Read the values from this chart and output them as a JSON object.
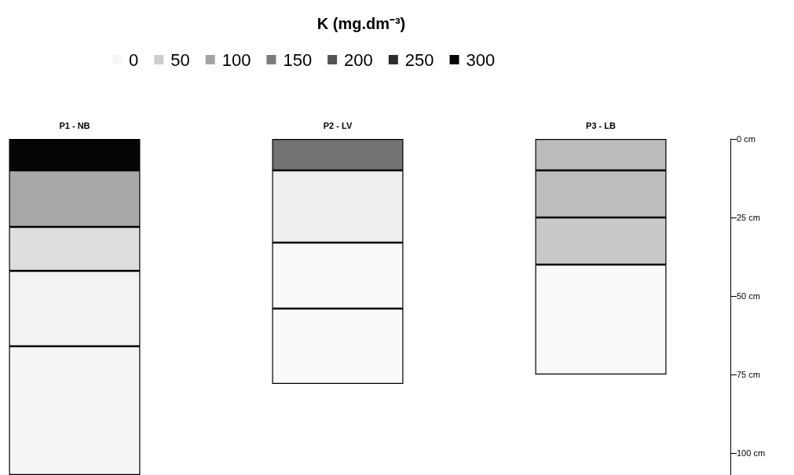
{
  "chart_data": {
    "type": "bar",
    "stacked": true,
    "legend_title": "K (mg.dm⁻³)",
    "legend": "top",
    "categories": [
      "P1 - NB",
      "P2 - LV",
      "P3 - LB"
    ],
    "series": [
      {
        "values": [
          10,
          10,
          10
        ],
        "colors": [
          "#050505",
          "#737373",
          "#bbbbbb"
        ]
      },
      {
        "values": [
          18,
          23,
          15
        ],
        "colors": [
          "#a8a8a8",
          "#efefef",
          "#bdbdbd"
        ]
      },
      {
        "values": [
          14,
          21,
          15
        ],
        "colors": [
          "#dedede",
          "#fafafa",
          "#c9c9c9"
        ]
      },
      {
        "values": [
          24,
          24,
          35
        ],
        "colors": [
          "#f3f3f3",
          "#fafafa",
          "#f9f9f9"
        ]
      },
      {
        "values": [
          41,
          null,
          null
        ],
        "colors": [
          "#f5f5f5",
          null,
          null
        ]
      },
      {
        "name": "0",
        "color": "#f7f7f7",
        "values": [
          null,
          null,
          null
        ]
      },
      {
        "name": "50",
        "color": "#cecece",
        "values": [
          null,
          null,
          null
        ]
      },
      {
        "name": "100",
        "color": "#a4a4a4",
        "values": [
          null,
          null,
          null
        ]
      },
      {
        "name": "150",
        "color": "#7c7c7c",
        "values": [
          null,
          null,
          null
        ]
      },
      {
        "name": "200",
        "color": "#545454",
        "values": [
          null,
          null,
          null
        ]
      },
      {
        "name": "250",
        "color": "#2c2c2c",
        "values": [
          null,
          null,
          null
        ]
      },
      {
        "name": "300",
        "color": "#050505",
        "values": [
          null,
          null,
          null
        ]
      }
    ],
    "ylim": [
      107,
      0
    ],
    "yticks": [
      {
        "value": 0,
        "label": "0 cm"
      },
      {
        "value": 25,
        "label": "25 cm"
      },
      {
        "value": 50,
        "label": "50 cm"
      },
      {
        "value": 75,
        "label": "75 cm"
      },
      {
        "value": 100,
        "label": "100 cm"
      }
    ],
    "grid": false
  }
}
